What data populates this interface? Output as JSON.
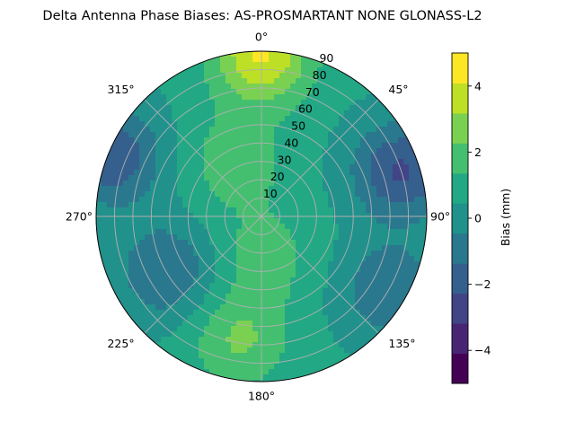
{
  "chart_data": {
    "type": "heatmap",
    "subtype": "polar-filled-contour",
    "title": "Delta Antenna Phase Biases: AS-PROSMARTANT  NONE GLONASS-L2",
    "theta_zero_location": "top",
    "theta_direction": "clockwise",
    "theta_ticks": [
      0,
      45,
      90,
      135,
      180,
      225,
      270,
      315
    ],
    "theta_tick_labels": [
      "0°",
      "45°",
      "90°",
      "135°",
      "180°",
      "225°",
      "270°",
      "315°"
    ],
    "r_ticks": [
      10,
      20,
      30,
      40,
      50,
      60,
      70,
      80,
      90
    ],
    "r_tick_labels": [
      "10",
      "20",
      "30",
      "40",
      "50",
      "60",
      "70",
      "80",
      "90"
    ],
    "r_label_angle": 22.5,
    "rlim": [
      0,
      90
    ],
    "grid": true,
    "colorbar": {
      "label": "Bias (mm)",
      "ticks": [
        -4,
        -2,
        0,
        2,
        4
      ],
      "tick_labels": [
        "−4",
        "−2",
        "0",
        "2",
        "4"
      ],
      "levels": [
        -5,
        -4.5,
        -4,
        -3.5,
        -3,
        -2.5,
        -2,
        -1.5,
        -1,
        -0.5,
        0,
        0.5,
        1,
        1.5,
        2,
        2.5,
        3,
        3.5,
        4,
        4.5,
        5
      ]
    },
    "colormap": "viridis",
    "colors": [
      "#440154",
      "#482475",
      "#414487",
      "#355f8d",
      "#2a788e",
      "#21918c",
      "#22a884",
      "#44bf70",
      "#7ad151",
      "#bddf26",
      "#fde725"
    ],
    "field_features": [
      {
        "label": "high bias near zenith edge at azimuth ~350°-15°",
        "azimuth_deg": 0,
        "zenith_deg": 88,
        "value_mm": 4.2
      },
      {
        "label": "low bias band east (azimuth 50°-100°)",
        "azimuth_deg": 72,
        "zenith_deg": 80,
        "value_mm": -2.4
      },
      {
        "label": "low bias west (azimuth 285°-300°)",
        "azimuth_deg": 292,
        "zenith_deg": 88,
        "value_mm": -2.2
      },
      {
        "label": "positive lobe south (azimuth ~190°)",
        "azimuth_deg": 190,
        "zenith_deg": 68,
        "value_mm": 2.4
      },
      {
        "label": "positive lobe north-west (azimuth ~335°)",
        "azimuth_deg": 335,
        "zenith_deg": 33,
        "value_mm": 2.0
      },
      {
        "label": "positive patch near centre south (azimuth ~175°)",
        "azimuth_deg": 175,
        "zenith_deg": 22,
        "value_mm": 1.8
      },
      {
        "label": "negative patch south-west (azimuth ~240°)",
        "azimuth_deg": 240,
        "zenith_deg": 60,
        "value_mm": -1.4
      },
      {
        "label": "negative patch south-east (azimuth ~120°)",
        "azimuth_deg": 120,
        "zenith_deg": 80,
        "value_mm": -1.3
      }
    ]
  }
}
